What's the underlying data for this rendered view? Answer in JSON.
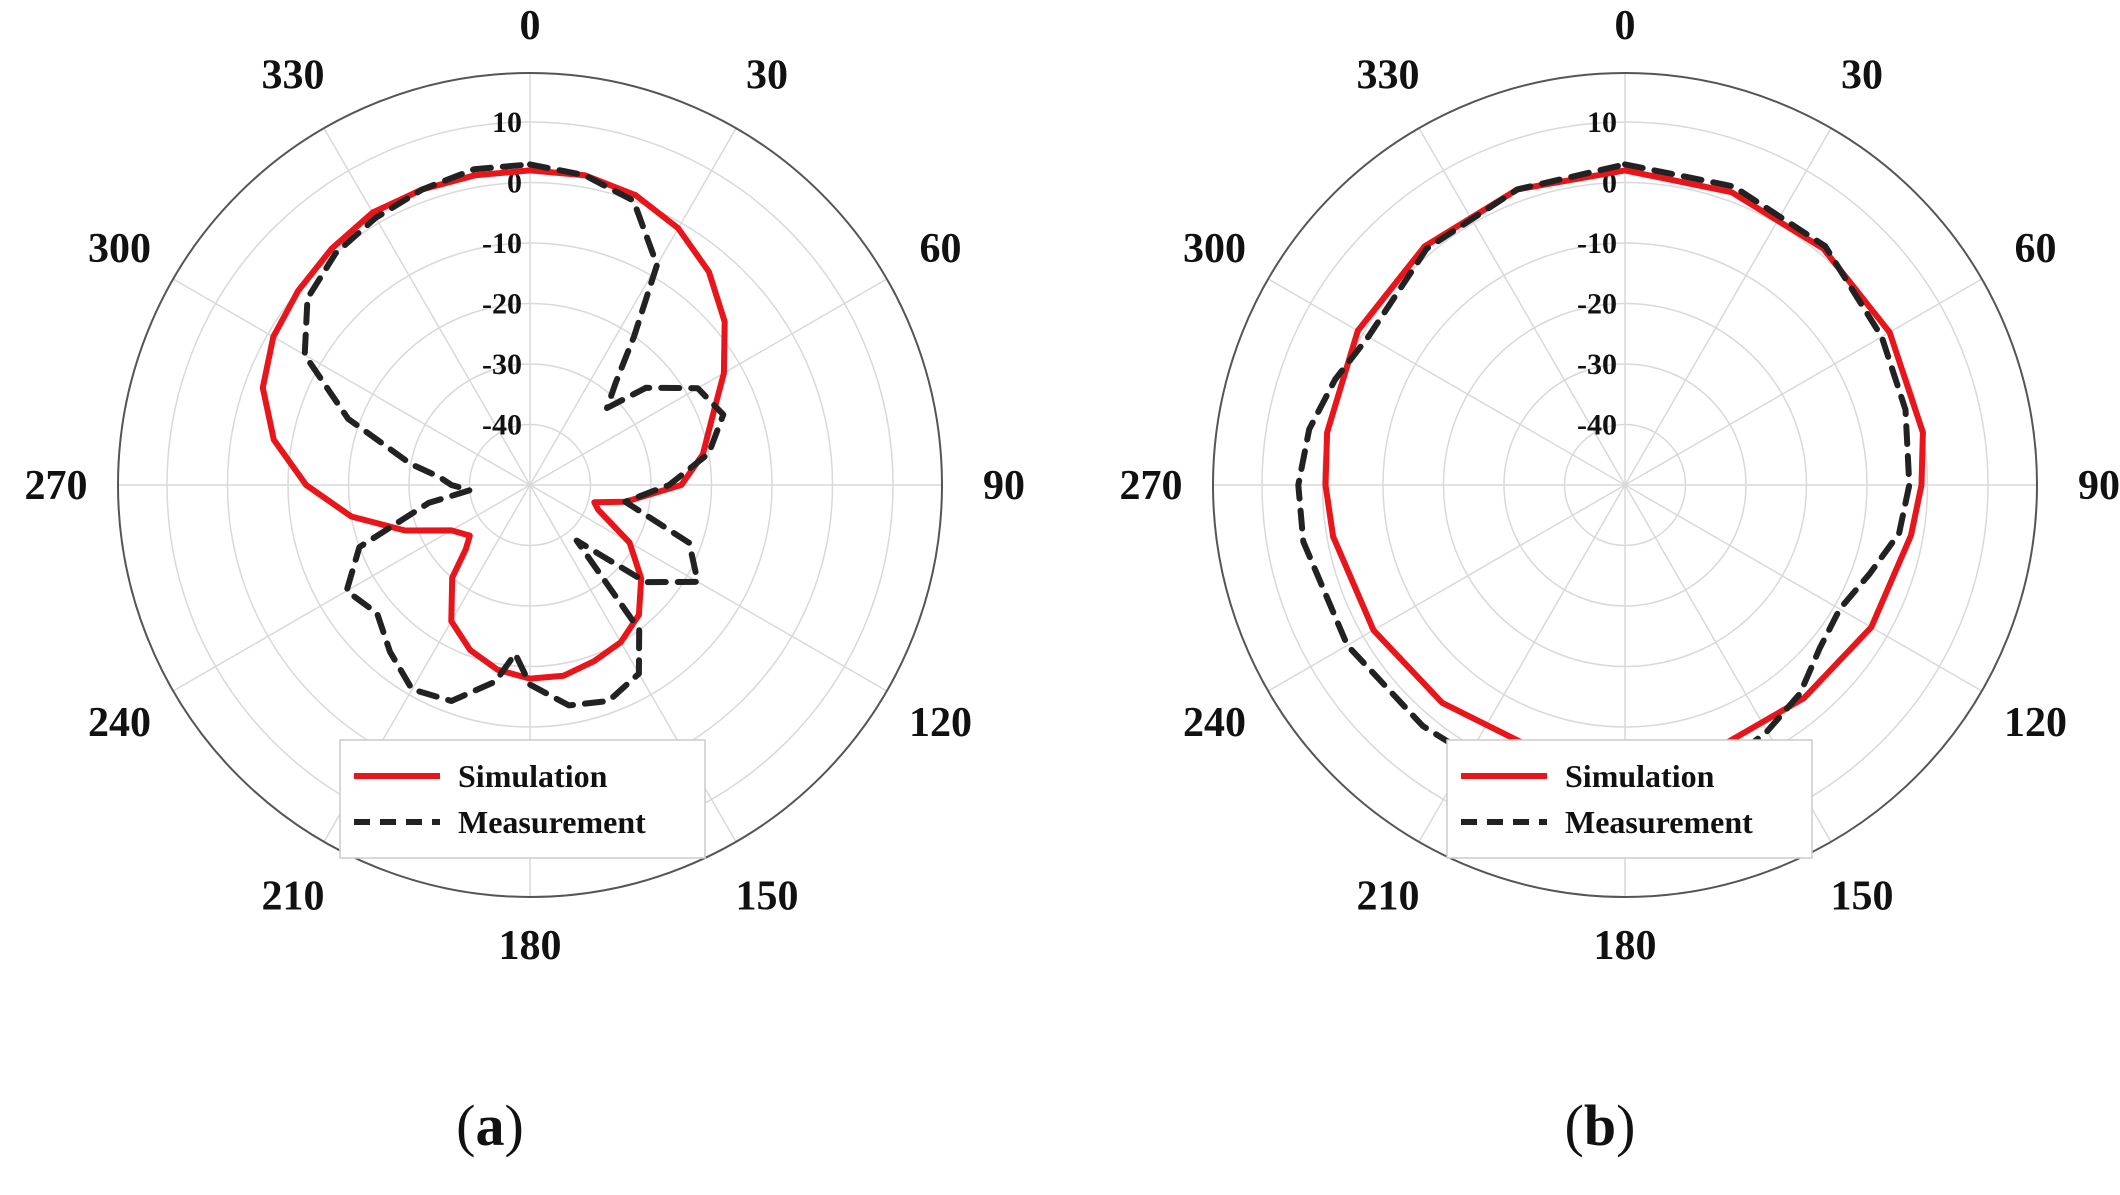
{
  "chart_data": [
    {
      "type": "polar-line",
      "panel_label": [
        "(",
        "a",
        ")"
      ],
      "angle_ticks": [
        0,
        30,
        60,
        90,
        120,
        150,
        180,
        210,
        240,
        270,
        300,
        330
      ],
      "radial_ticks": [
        10,
        0,
        -10,
        -20,
        -30,
        -40
      ],
      "rlim": [
        -50,
        10
      ],
      "grid": true,
      "legend": [
        "Simulation",
        "Measurement"
      ],
      "legend_placement": "bottom-center",
      "series": [
        {
          "name": "Simulation",
          "color": "#e8161b",
          "style": "solid",
          "points": [
            [
              0,
              2
            ],
            [
              10,
              2
            ],
            [
              20,
              1
            ],
            [
              30,
              -1
            ],
            [
              40,
              -4
            ],
            [
              50,
              -8
            ],
            [
              60,
              -13
            ],
            [
              70,
              -18
            ],
            [
              80,
              -21
            ],
            [
              90,
              -25
            ],
            [
              100,
              -34
            ],
            [
              105,
              -39
            ],
            [
              110,
              -38
            ],
            [
              120,
              -31
            ],
            [
              130,
              -26
            ],
            [
              140,
              -22
            ],
            [
              150,
              -20
            ],
            [
              160,
              -19
            ],
            [
              170,
              -18
            ],
            [
              180,
              -18
            ],
            [
              190,
              -19
            ],
            [
              200,
              -21
            ],
            [
              210,
              -24
            ],
            [
              220,
              -30
            ],
            [
              225,
              -35
            ],
            [
              230,
              -37
            ],
            [
              240,
              -35
            ],
            [
              250,
              -28
            ],
            [
              260,
              -20
            ],
            [
              270,
              -13
            ],
            [
              280,
              -7
            ],
            [
              290,
              -3
            ],
            [
              300,
              -1
            ],
            [
              310,
              0
            ],
            [
              320,
              1
            ],
            [
              330,
              2
            ],
            [
              340,
              2
            ],
            [
              350,
              2
            ],
            [
              360,
              2
            ]
          ]
        },
        {
          "name": "Measurement",
          "color": "#222222",
          "style": "dashed",
          "points": [
            [
              0,
              3
            ],
            [
              10,
              2
            ],
            [
              20,
              0
            ],
            [
              30,
              -8
            ],
            [
              35,
              -20
            ],
            [
              40,
              -28
            ],
            [
              45,
              -32
            ],
            [
              50,
              -25
            ],
            [
              60,
              -18
            ],
            [
              70,
              -16
            ],
            [
              80,
              -20
            ],
            [
              90,
              -27
            ],
            [
              100,
              -34
            ],
            [
              110,
              -22
            ],
            [
              120,
              -18
            ],
            [
              130,
              -25
            ],
            [
              140,
              -38
            ],
            [
              143,
              -20
            ],
            [
              150,
              -14
            ],
            [
              160,
              -12
            ],
            [
              170,
              -13
            ],
            [
              180,
              -17
            ],
            [
              185,
              -22
            ],
            [
              190,
              -17
            ],
            [
              200,
              -12
            ],
            [
              210,
              -11
            ],
            [
              220,
              -14
            ],
            [
              230,
              -17
            ],
            [
              240,
              -15
            ],
            [
              250,
              -20
            ],
            [
              260,
              -33
            ],
            [
              265,
              -40
            ],
            [
              270,
              -37
            ],
            [
              275,
              -35
            ],
            [
              280,
              -30
            ],
            [
              290,
              -18
            ],
            [
              300,
              -7
            ],
            [
              310,
              -2
            ],
            [
              320,
              0
            ],
            [
              330,
              1
            ],
            [
              340,
              2
            ],
            [
              350,
              3
            ],
            [
              360,
              3
            ]
          ]
        }
      ]
    },
    {
      "type": "polar-line",
      "panel_label": [
        "(",
        "b",
        ")"
      ],
      "angle_ticks": [
        0,
        30,
        60,
        90,
        120,
        150,
        180,
        210,
        240,
        270,
        300,
        330
      ],
      "radial_ticks": [
        10,
        0,
        -10,
        -20,
        -30,
        -40
      ],
      "rlim": [
        -50,
        10
      ],
      "grid": true,
      "legend": [
        "Simulation",
        "Measurement"
      ],
      "legend_placement": "bottom-center",
      "series": [
        {
          "name": "Simulation",
          "color": "#e8161b",
          "style": "solid",
          "points": [
            [
              0,
              2
            ],
            [
              20,
              1.5
            ],
            [
              40,
              1
            ],
            [
              60,
              0.5
            ],
            [
              80,
              0
            ],
            [
              90,
              -1
            ],
            [
              100,
              -2
            ],
            [
              120,
              -3
            ],
            [
              140,
              -4
            ],
            [
              160,
              -4
            ],
            [
              180,
              -4
            ],
            [
              200,
              -4
            ],
            [
              220,
              -3
            ],
            [
              240,
              -2
            ],
            [
              260,
              -1
            ],
            [
              270,
              -0.5
            ],
            [
              280,
              0
            ],
            [
              300,
              1
            ],
            [
              320,
              1.5
            ],
            [
              340,
              2
            ],
            [
              360,
              2
            ]
          ]
        },
        {
          "name": "Measurement",
          "color": "#222222",
          "style": "dashed",
          "points": [
            [
              0,
              3
            ],
            [
              20,
              2.5
            ],
            [
              40,
              1.5
            ],
            [
              60,
              -1
            ],
            [
              75,
              -2
            ],
            [
              90,
              -3
            ],
            [
              100,
              -4
            ],
            [
              110,
              -7
            ],
            [
              120,
              -9
            ],
            [
              130,
              -8
            ],
            [
              140,
              -5
            ],
            [
              150,
              -3
            ],
            [
              160,
              -1
            ],
            [
              170,
              0
            ],
            [
              180,
              1
            ],
            [
              190,
              1.5
            ],
            [
              200,
              1.5
            ],
            [
              210,
              1.5
            ],
            [
              220,
              2
            ],
            [
              240,
              3
            ],
            [
              260,
              4
            ],
            [
              270,
              4
            ],
            [
              280,
              3
            ],
            [
              290,
              1
            ],
            [
              300,
              -1
            ],
            [
              320,
              1
            ],
            [
              340,
              2
            ],
            [
              360,
              3
            ]
          ]
        }
      ]
    }
  ]
}
